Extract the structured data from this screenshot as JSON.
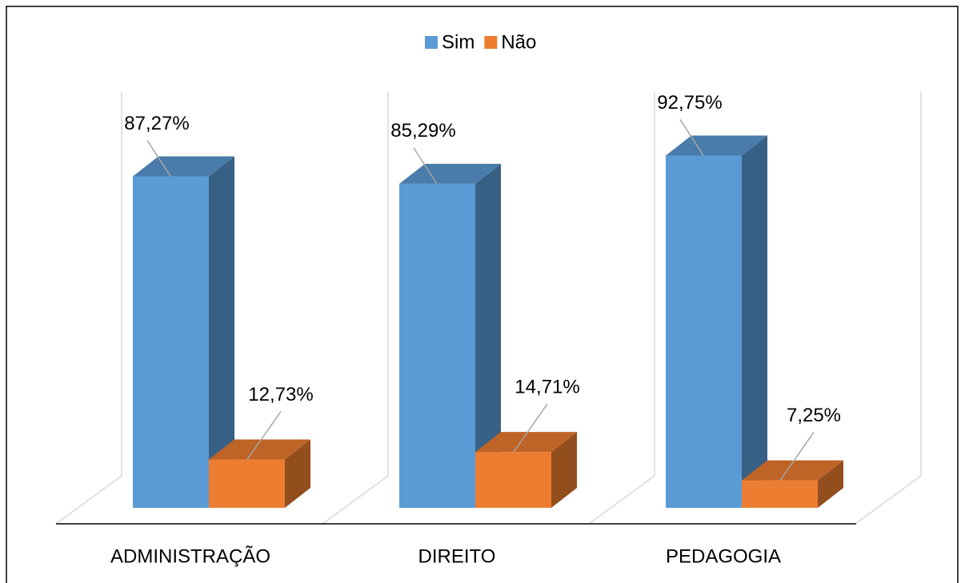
{
  "chart_data": {
    "type": "bar3d",
    "categories": [
      "ADMINISTRAÇÃO",
      "DIREITO",
      "PEDAGOGIA"
    ],
    "series": [
      {
        "name": "Sim",
        "color": "#5b9bd5",
        "values": [
          87.27,
          85.29,
          92.75
        ],
        "value_labels": [
          "87,27%",
          "85,29%",
          "92,75%"
        ]
      },
      {
        "name": "Não",
        "color": "#ed7d31",
        "values": [
          12.73,
          14.71,
          7.25
        ],
        "value_labels": [
          "12,73%",
          "14,71%",
          "7,25%"
        ]
      }
    ],
    "ylim": [
      0,
      100
    ],
    "legend": "top"
  }
}
